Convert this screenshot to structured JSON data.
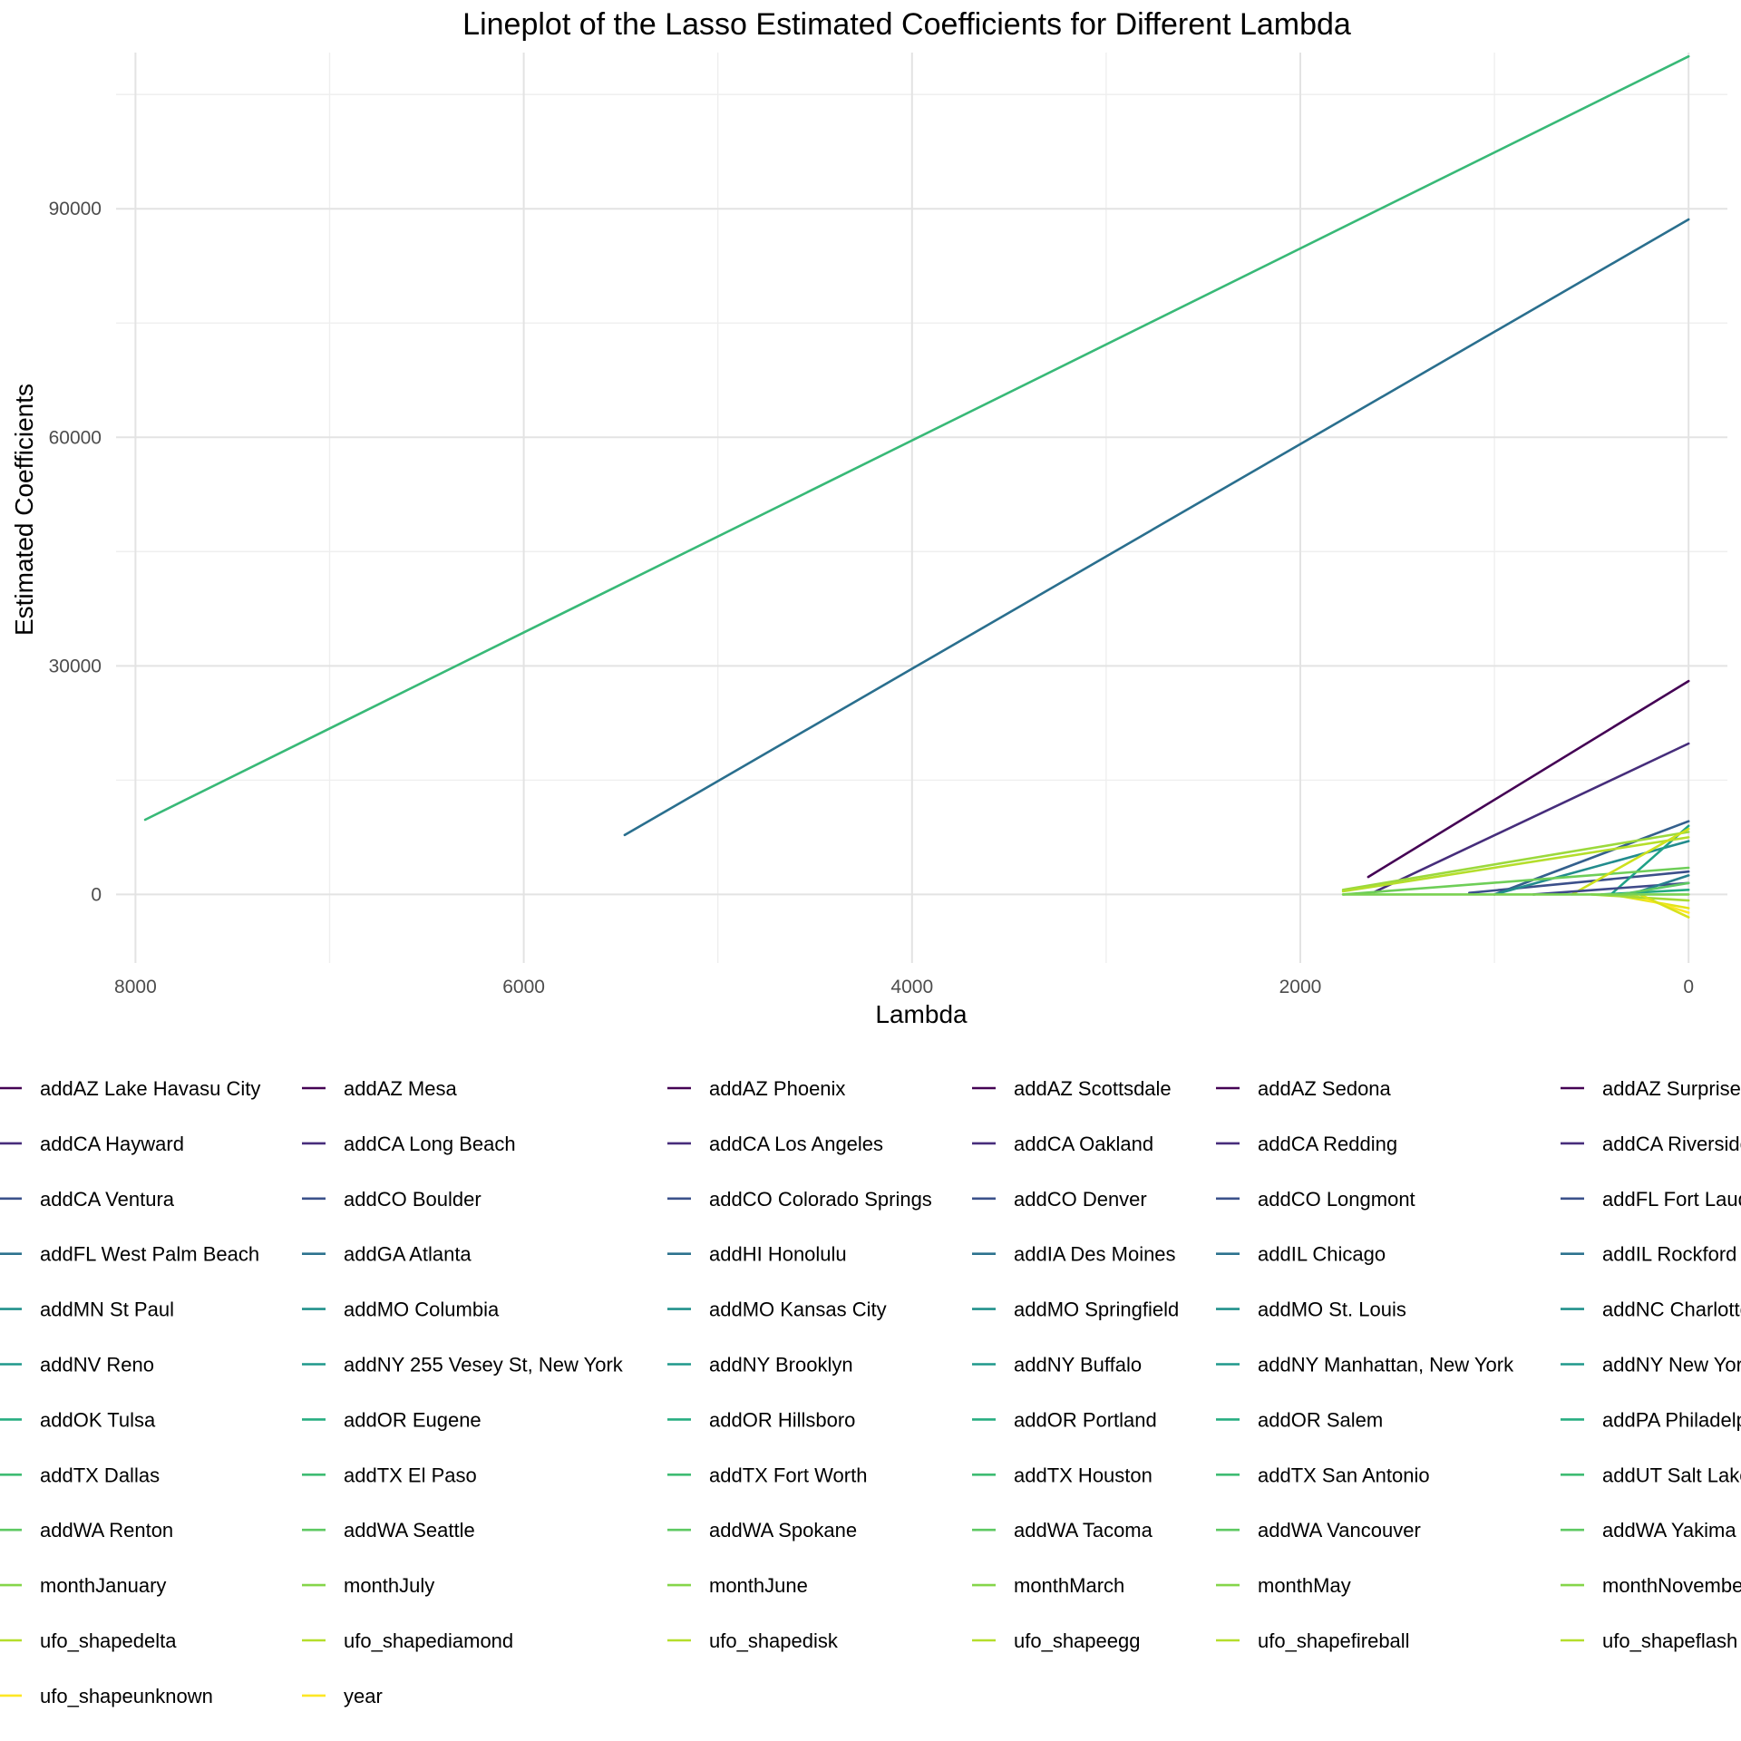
{
  "chart_data": {
    "type": "line",
    "title": "Lineplot of the Lasso Estimated Coefficients for Different Lambda",
    "xlabel": "Lambda",
    "ylabel": "Estimated Coefficients",
    "x_reversed": true,
    "xlim": [
      8100,
      -200
    ],
    "ylim": [
      -9000,
      110500
    ],
    "x_ticks": [
      "8000",
      "6000",
      "4000",
      "2000",
      "0"
    ],
    "x_tick_values": [
      8000,
      6000,
      4000,
      2000,
      0
    ],
    "y_ticks": [
      "0",
      "30000",
      "60000",
      "90000"
    ],
    "y_tick_values": [
      0,
      30000,
      60000,
      90000
    ],
    "grid": true,
    "legend_position": "bottom",
    "colormap": "viridis",
    "series": [
      {
        "name": "addAZ Lake Havasu City",
        "color": "#440154",
        "x": [
          1650,
          0
        ],
        "y": [
          2300,
          28000
        ]
      },
      {
        "name": "addCA Hayward",
        "color": "#462d7b",
        "x": [
          1620,
          0
        ],
        "y": [
          300,
          19800
        ]
      },
      {
        "name": "addCA Long Beach",
        "color": "#3b4f8a",
        "x": [
          1130,
          0
        ],
        "y": [
          200,
          3000
        ]
      },
      {
        "name": "addCA Ventura",
        "color": "#34608d",
        "x": [
          1000,
          0
        ],
        "y": [
          0,
          9600
        ]
      },
      {
        "name": "addGA Atlanta",
        "color": "#2a6f8e",
        "x": [
          5480,
          0
        ],
        "y": [
          7800,
          88600
        ]
      },
      {
        "name": "addMO Columbia",
        "color": "#228c8d",
        "x": [
          1000,
          0
        ],
        "y": [
          0,
          7000
        ]
      },
      {
        "name": "addOR Portland",
        "color": "#1fa187",
        "x": [
          400,
          0
        ],
        "y": [
          0,
          9000
        ]
      },
      {
        "name": "addTX Fort Worth",
        "color": "#38b977",
        "x": [
          7950,
          0
        ],
        "y": [
          9800,
          110000
        ]
      },
      {
        "name": "addWA Renton",
        "color": "#6ece58",
        "x": [
          1780,
          0
        ],
        "y": [
          0,
          3500
        ]
      },
      {
        "name": "monthJanuary",
        "color": "#9bd93c",
        "x": [
          1780,
          0
        ],
        "y": [
          600,
          8200
        ]
      },
      {
        "name": "ufo_shapedelta",
        "color": "#b5de2b",
        "x": [
          1780,
          0
        ],
        "y": [
          400,
          7500
        ]
      },
      {
        "name": "ufo_shapedisk",
        "color": "#cde11d",
        "x": [
          600,
          0
        ],
        "y": [
          0,
          8600
        ]
      },
      {
        "name": "ufo_shapeunknown",
        "color": "#e4e419",
        "x": [
          400,
          0
        ],
        "y": [
          0,
          -1800
        ]
      },
      {
        "name": "year",
        "color": "#fde725",
        "x": [
          300,
          0
        ],
        "y": [
          0,
          -2400
        ]
      },
      {
        "name": "addIL Chicago",
        "color": "#3e4a89",
        "x": [
          800,
          0
        ],
        "y": [
          0,
          1500
        ]
      },
      {
        "name": "addNY Brooklyn",
        "color": "#277f8e",
        "x": [
          300,
          0
        ],
        "y": [
          0,
          2500
        ]
      },
      {
        "name": "addOR Salem",
        "color": "#25ab82",
        "x": [
          450,
          0
        ],
        "y": [
          0,
          600
        ]
      },
      {
        "name": "addWA Seattle",
        "color": "#5ec962",
        "x": [
          350,
          0
        ],
        "y": [
          0,
          1500
        ]
      },
      {
        "name": "monthMay",
        "color": "#a5db36",
        "x": [
          500,
          0
        ],
        "y": [
          0,
          -800
        ]
      },
      {
        "name": "ufo_shapefireball",
        "color": "#d8e219",
        "x": [
          250,
          0
        ],
        "y": [
          0,
          -3000
        ]
      },
      {
        "name": "addWA Spokane",
        "color": "#7ad151",
        "x": [
          1780,
          0
        ],
        "y": [
          0,
          0
        ]
      }
    ]
  },
  "legend": {
    "columns": [
      [
        "addAZ Lake Havasu City",
        "addCA Hayward",
        "addCA Ventura",
        "addFL West Palm Beach",
        "addMN St Paul",
        "addNV Reno",
        "addOK Tulsa",
        "addTX Dallas",
        "addWA Renton",
        "monthJanuary",
        "ufo_shapedelta",
        "ufo_shapeunknown"
      ],
      [
        "addAZ Mesa",
        "addCA Long Beach",
        "addCO Boulder",
        "addGA Atlanta",
        "addMO Columbia",
        "addNY 255 Vesey St, New York",
        "addOR Eugene",
        "addTX El Paso",
        "addWA Seattle",
        "monthJuly",
        "ufo_shapediamond",
        "year"
      ],
      [
        "addAZ Phoenix",
        "addCA Los Angeles",
        "addCO Colorado Springs",
        "addHI Honolulu",
        "addMO Kansas City",
        "addNY Brooklyn",
        "addOR Hillsboro",
        "addTX Fort Worth",
        "addWA Spokane",
        "monthJune",
        "ufo_shapedisk"
      ],
      [
        "addAZ Scottsdale",
        "addCA Oakland",
        "addCO Denver",
        "addIA Des Moines",
        "addMO Springfield",
        "addNY Buffalo",
        "addOR Portland",
        "addTX Houston",
        "addWA Tacoma",
        "monthMarch",
        "ufo_shapeegg"
      ],
      [
        "addAZ Sedona",
        "addCA Redding",
        "addCO Longmont",
        "addIL Chicago",
        "addMO St. Louis",
        "addNY Manhattan, New York",
        "addOR Salem",
        "addTX San Antonio",
        "addWA Vancouver",
        "monthMay",
        "ufo_shapefireball"
      ],
      [
        "addAZ Surprise",
        "addCA Riverside",
        "addFL Fort Lauderdale",
        "addIL Rockford",
        "addNC Charlotte",
        "addNY New York",
        "addPA Philadelphia",
        "addUT Salt Lake City",
        "addWA Yakima",
        "monthNovember",
        "ufo_shapeflash"
      ]
    ],
    "row_colors": [
      "#440154",
      "#472d7b",
      "#3b528b",
      "#2c728e",
      "#21918c",
      "#1f988b",
      "#27ad81",
      "#3fbc73",
      "#5ec962",
      "#85d54a",
      "#b5de2b",
      "#fde725"
    ]
  }
}
